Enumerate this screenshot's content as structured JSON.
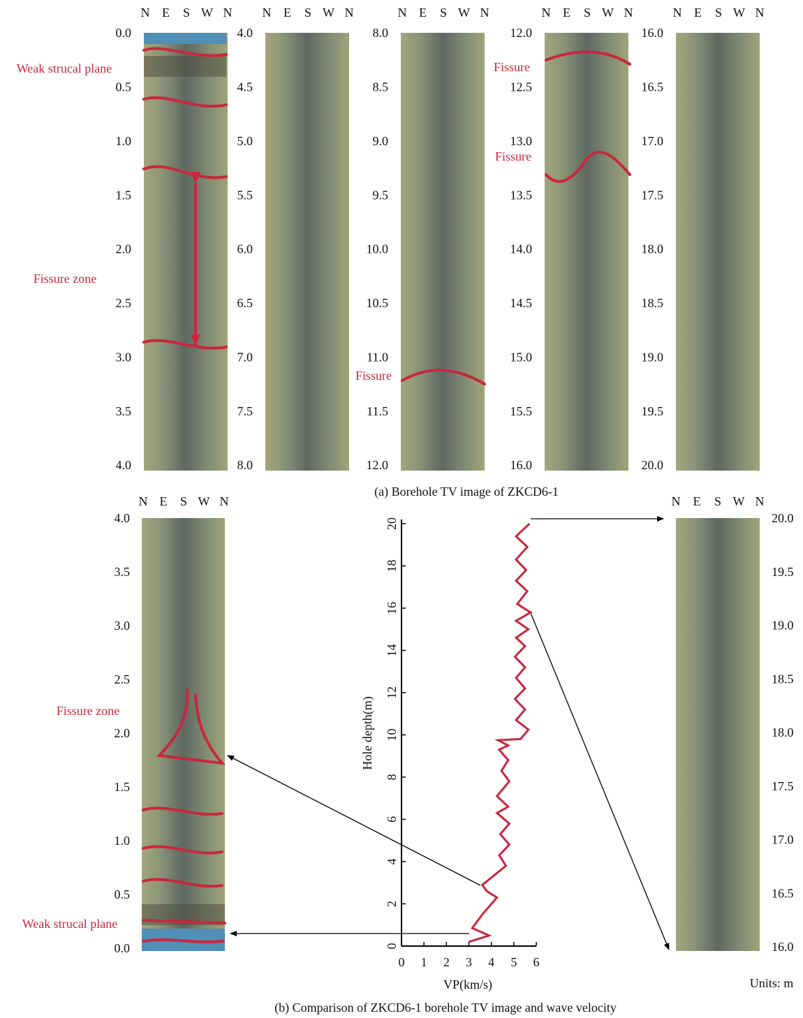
{
  "compass": [
    "N",
    "E",
    "S",
    "W",
    "N"
  ],
  "panel_a": {
    "caption": "(a) Borehole TV image of ZKCD6-1",
    "columns": [
      [
        "0.0",
        "0.5",
        "1.0",
        "1.5",
        "2.0",
        "2.5",
        "3.0",
        "3.5",
        "4.0"
      ],
      [
        "4.0",
        "4.5",
        "5.0",
        "5.5",
        "6.0",
        "6.5",
        "7.0",
        "7.5",
        "8.0"
      ],
      [
        "8.0",
        "8.5",
        "9.0",
        "9.5",
        "10.0",
        "10.5",
        "11.0",
        "11.5",
        "12.0"
      ],
      [
        "12.0",
        "12.5",
        "13.0",
        "13.5",
        "14.0",
        "14.5",
        "15.0",
        "15.5",
        "16.0"
      ],
      [
        "16.0",
        "16.5",
        "17.0",
        "17.5",
        "18.0",
        "18.5",
        "19.0",
        "19.5",
        "20.0"
      ]
    ],
    "annotations": [
      "Weak strucal plane",
      "Fissure zone",
      "Fissure",
      "Fissure",
      "Fissure"
    ]
  },
  "panel_b": {
    "caption": "(b) Comparison of ZKCD6-1 borehole TV image and wave velocity",
    "left_column": [
      "4.0",
      "3.5",
      "3.0",
      "2.5",
      "2.0",
      "1.5",
      "1.0",
      "0.5",
      "0.0"
    ],
    "right_column": [
      "20.0",
      "19.5",
      "19.0",
      "18.5",
      "18.0",
      "17.5",
      "17.0",
      "16.5",
      "16.0"
    ],
    "annotations": [
      "Fissure zone",
      "Weak strucal plane"
    ],
    "units": "Units: m"
  },
  "chart_data": {
    "type": "line",
    "x_label": "VP(km/s)",
    "y_label": "Hole depth(m)",
    "xlim": [
      0,
      6
    ],
    "xticks": [
      0,
      1,
      2,
      3,
      4,
      5,
      6
    ],
    "ylim": [
      0,
      20
    ],
    "yticks": [
      0,
      2,
      4,
      6,
      8,
      10,
      12,
      14,
      16,
      18,
      20
    ],
    "color": "#c8283c",
    "x": [
      3.0,
      3.9,
      3.15,
      3.6,
      4.25,
      3.8,
      3.6,
      4.65,
      4.35,
      4.8,
      4.4,
      4.8,
      4.25,
      4.75,
      4.25,
      4.8,
      4.45,
      4.75,
      4.35,
      4.75,
      4.3,
      5.3,
      5.65,
      5.1,
      5.5,
      5.05,
      5.5,
      5.1,
      5.5,
      5.05,
      5.5,
      5.1,
      5.65,
      5.1,
      5.75,
      5.15,
      5.6,
      5.1,
      5.55,
      5.1,
      5.6,
      5.1,
      5.7
    ],
    "values": [
      0.2,
      0.5,
      0.85,
      1.5,
      2.3,
      2.6,
      2.9,
      3.8,
      4.3,
      4.8,
      5.3,
      5.8,
      6.3,
      6.6,
      7.1,
      7.8,
      8.3,
      8.8,
      9.3,
      9.5,
      9.75,
      9.8,
      10.25,
      10.7,
      11.2,
      11.7,
      12.2,
      12.7,
      13.2,
      13.7,
      14.2,
      14.6,
      15.0,
      15.4,
      15.8,
      16.2,
      16.8,
      17.3,
      17.8,
      18.3,
      18.9,
      19.4,
      20.0
    ]
  }
}
